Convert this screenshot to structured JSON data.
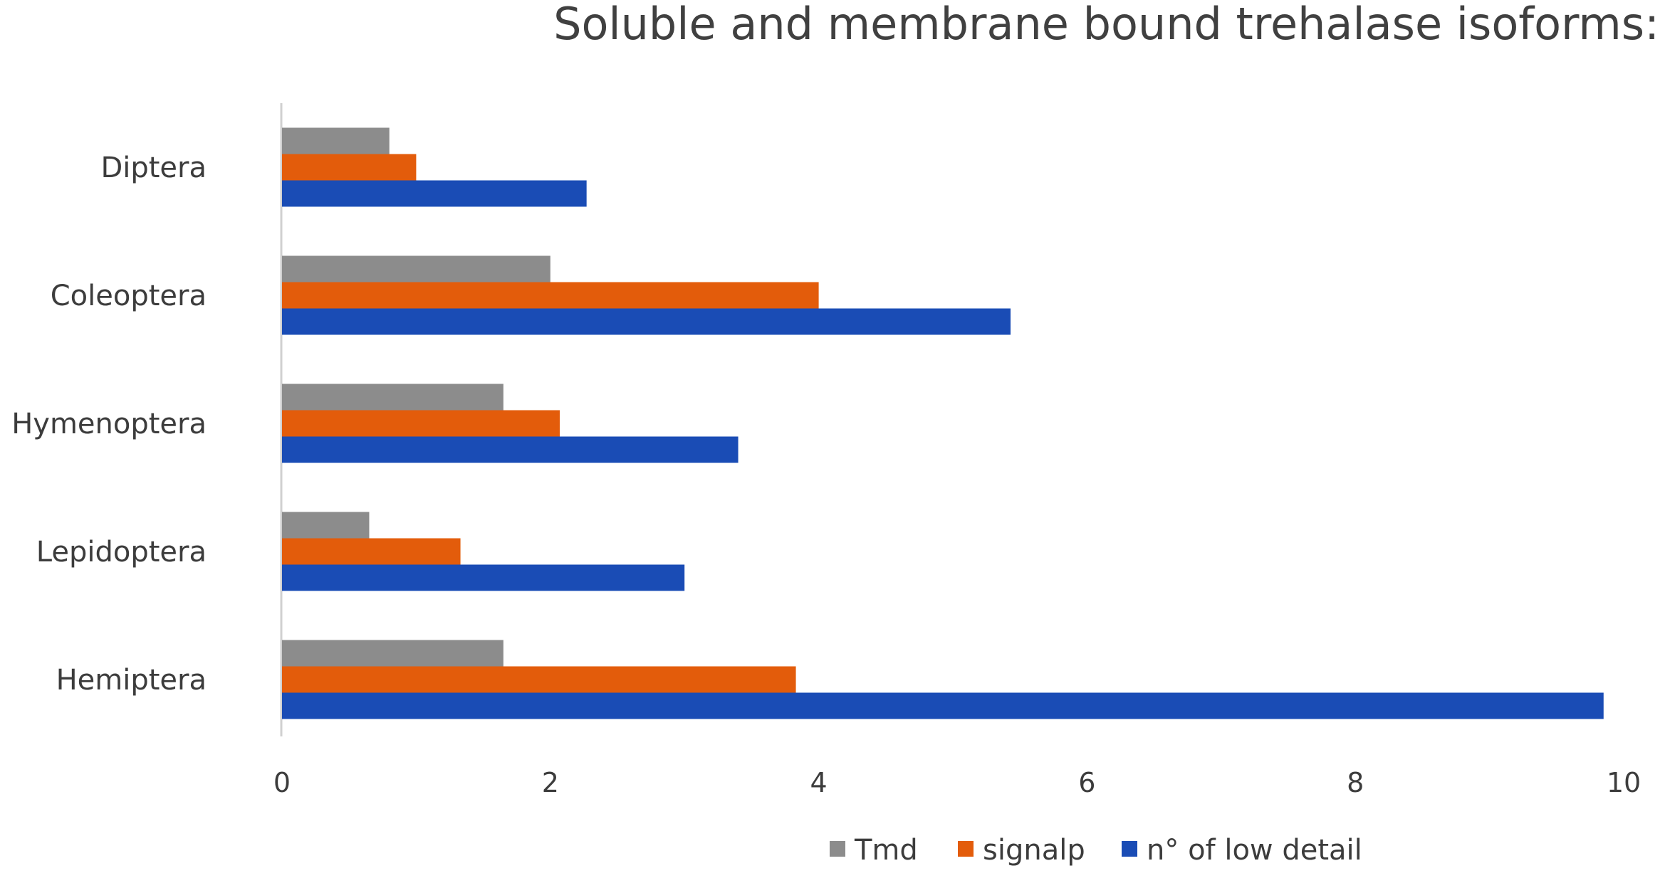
{
  "chart_data": {
    "type": "bar",
    "orientation": "horizontal",
    "title": "Soluble and membrane bound trehalase isoforms:",
    "xlabel": "",
    "ylabel": "",
    "categories": [
      "Diptera",
      "Coleoptera",
      "Hymenoptera",
      "Lepidoptera",
      "Hemiptera"
    ],
    "series": [
      {
        "name": "Tmd",
        "color": "#8c8c8c",
        "values": [
          0.8,
          2.0,
          1.65,
          0.65,
          1.65
        ]
      },
      {
        "name": "signalp",
        "color": "#e35c0b",
        "values": [
          1.0,
          4.0,
          2.07,
          1.33,
          3.83
        ]
      },
      {
        "name": "n° of low detail",
        "color": "#1a4cb5",
        "values": [
          2.27,
          5.43,
          3.4,
          3.0,
          9.85
        ]
      }
    ],
    "xlim": [
      0,
      10
    ],
    "xticks": [
      "0",
      "2",
      "4",
      "6",
      "8",
      "10"
    ],
    "grid": false,
    "legend_position": "bottom"
  }
}
